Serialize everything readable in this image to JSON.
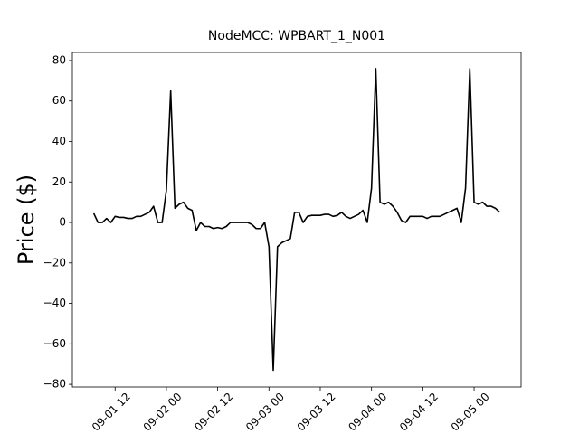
{
  "chart_data": {
    "type": "line",
    "title": "NodeMCC: WPBART_1_N001",
    "y_label": "Price ($)",
    "x": [
      "09-01 07",
      "09-01 08",
      "09-01 09",
      "09-01 10",
      "09-01 11",
      "09-01 12",
      "09-01 13",
      "09-01 14",
      "09-01 15",
      "09-01 16",
      "09-01 17",
      "09-01 18",
      "09-01 19",
      "09-01 20",
      "09-01 21",
      "09-01 22",
      "09-01 23",
      "09-02 00",
      "09-02 01",
      "09-02 02",
      "09-02 03",
      "09-02 04",
      "09-02 05",
      "09-02 06",
      "09-02 07",
      "09-02 08",
      "09-02 09",
      "09-02 10",
      "09-02 11",
      "09-02 12",
      "09-02 13",
      "09-02 14",
      "09-02 15",
      "09-02 16",
      "09-02 17",
      "09-02 18",
      "09-02 19",
      "09-02 20",
      "09-02 21",
      "09-02 22",
      "09-02 23",
      "09-03 00",
      "09-03 01",
      "09-03 02",
      "09-03 03",
      "09-03 04",
      "09-03 05",
      "09-03 06",
      "09-03 07",
      "09-03 08",
      "09-03 09",
      "09-03 10",
      "09-03 11",
      "09-03 12",
      "09-03 13",
      "09-03 14",
      "09-03 15",
      "09-03 16",
      "09-03 17",
      "09-03 18",
      "09-03 19",
      "09-03 20",
      "09-03 21",
      "09-03 22",
      "09-03 23",
      "09-04 00",
      "09-04 01",
      "09-04 02",
      "09-04 03",
      "09-04 04",
      "09-04 05",
      "09-04 06",
      "09-04 07",
      "09-04 08",
      "09-04 09",
      "09-04 10",
      "09-04 11",
      "09-04 12",
      "09-04 13",
      "09-04 14",
      "09-04 15",
      "09-04 16",
      "09-04 17",
      "09-04 18",
      "09-04 19",
      "09-04 20",
      "09-04 21",
      "09-04 22",
      "09-04 23",
      "09-05 00",
      "09-05 01",
      "09-05 02",
      "09-05 03",
      "09-05 04",
      "09-05 05",
      "09-05 06"
    ],
    "series": [
      {
        "name": "WPBART_1_N001",
        "color": "#000000",
        "values": [
          4.5,
          0,
          0,
          2,
          0,
          3,
          2.5,
          2.5,
          2,
          2,
          3,
          3,
          4,
          5,
          8,
          0,
          0,
          16,
          65,
          7,
          9,
          10,
          7,
          6,
          -4,
          0,
          -2,
          -2,
          -3,
          -2.5,
          -3,
          -2,
          0,
          0,
          0,
          0,
          0,
          -1,
          -3,
          -3,
          0,
          -12,
          -73,
          -12,
          -10,
          -9,
          -8,
          5,
          5,
          0,
          3,
          3.5,
          3.5,
          3.5,
          4,
          4,
          3,
          3.5,
          5,
          3,
          2,
          3,
          4,
          6,
          0,
          17,
          76,
          10,
          9,
          10,
          8,
          5,
          1,
          0,
          3,
          3,
          3,
          3,
          2,
          3,
          3,
          3,
          4,
          5,
          6,
          7,
          0,
          17,
          76,
          10,
          9,
          10,
          8,
          8,
          7,
          5
        ]
      }
    ],
    "xlim": [
      "09-01 02",
      "09-05 11"
    ],
    "xticks": [
      "09-01 12",
      "09-02 00",
      "09-02 12",
      "09-03 00",
      "09-03 12",
      "09-04 00",
      "09-04 12",
      "09-05 00"
    ],
    "ylim": [
      -81.3,
      84
    ],
    "yticks": [
      {
        "value": -80,
        "label": "−80"
      },
      {
        "value": -60,
        "label": "−60"
      },
      {
        "value": -40,
        "label": "−40"
      },
      {
        "value": -20,
        "label": "−20"
      },
      0,
      20,
      40,
      60,
      80
    ],
    "grid": false
  }
}
